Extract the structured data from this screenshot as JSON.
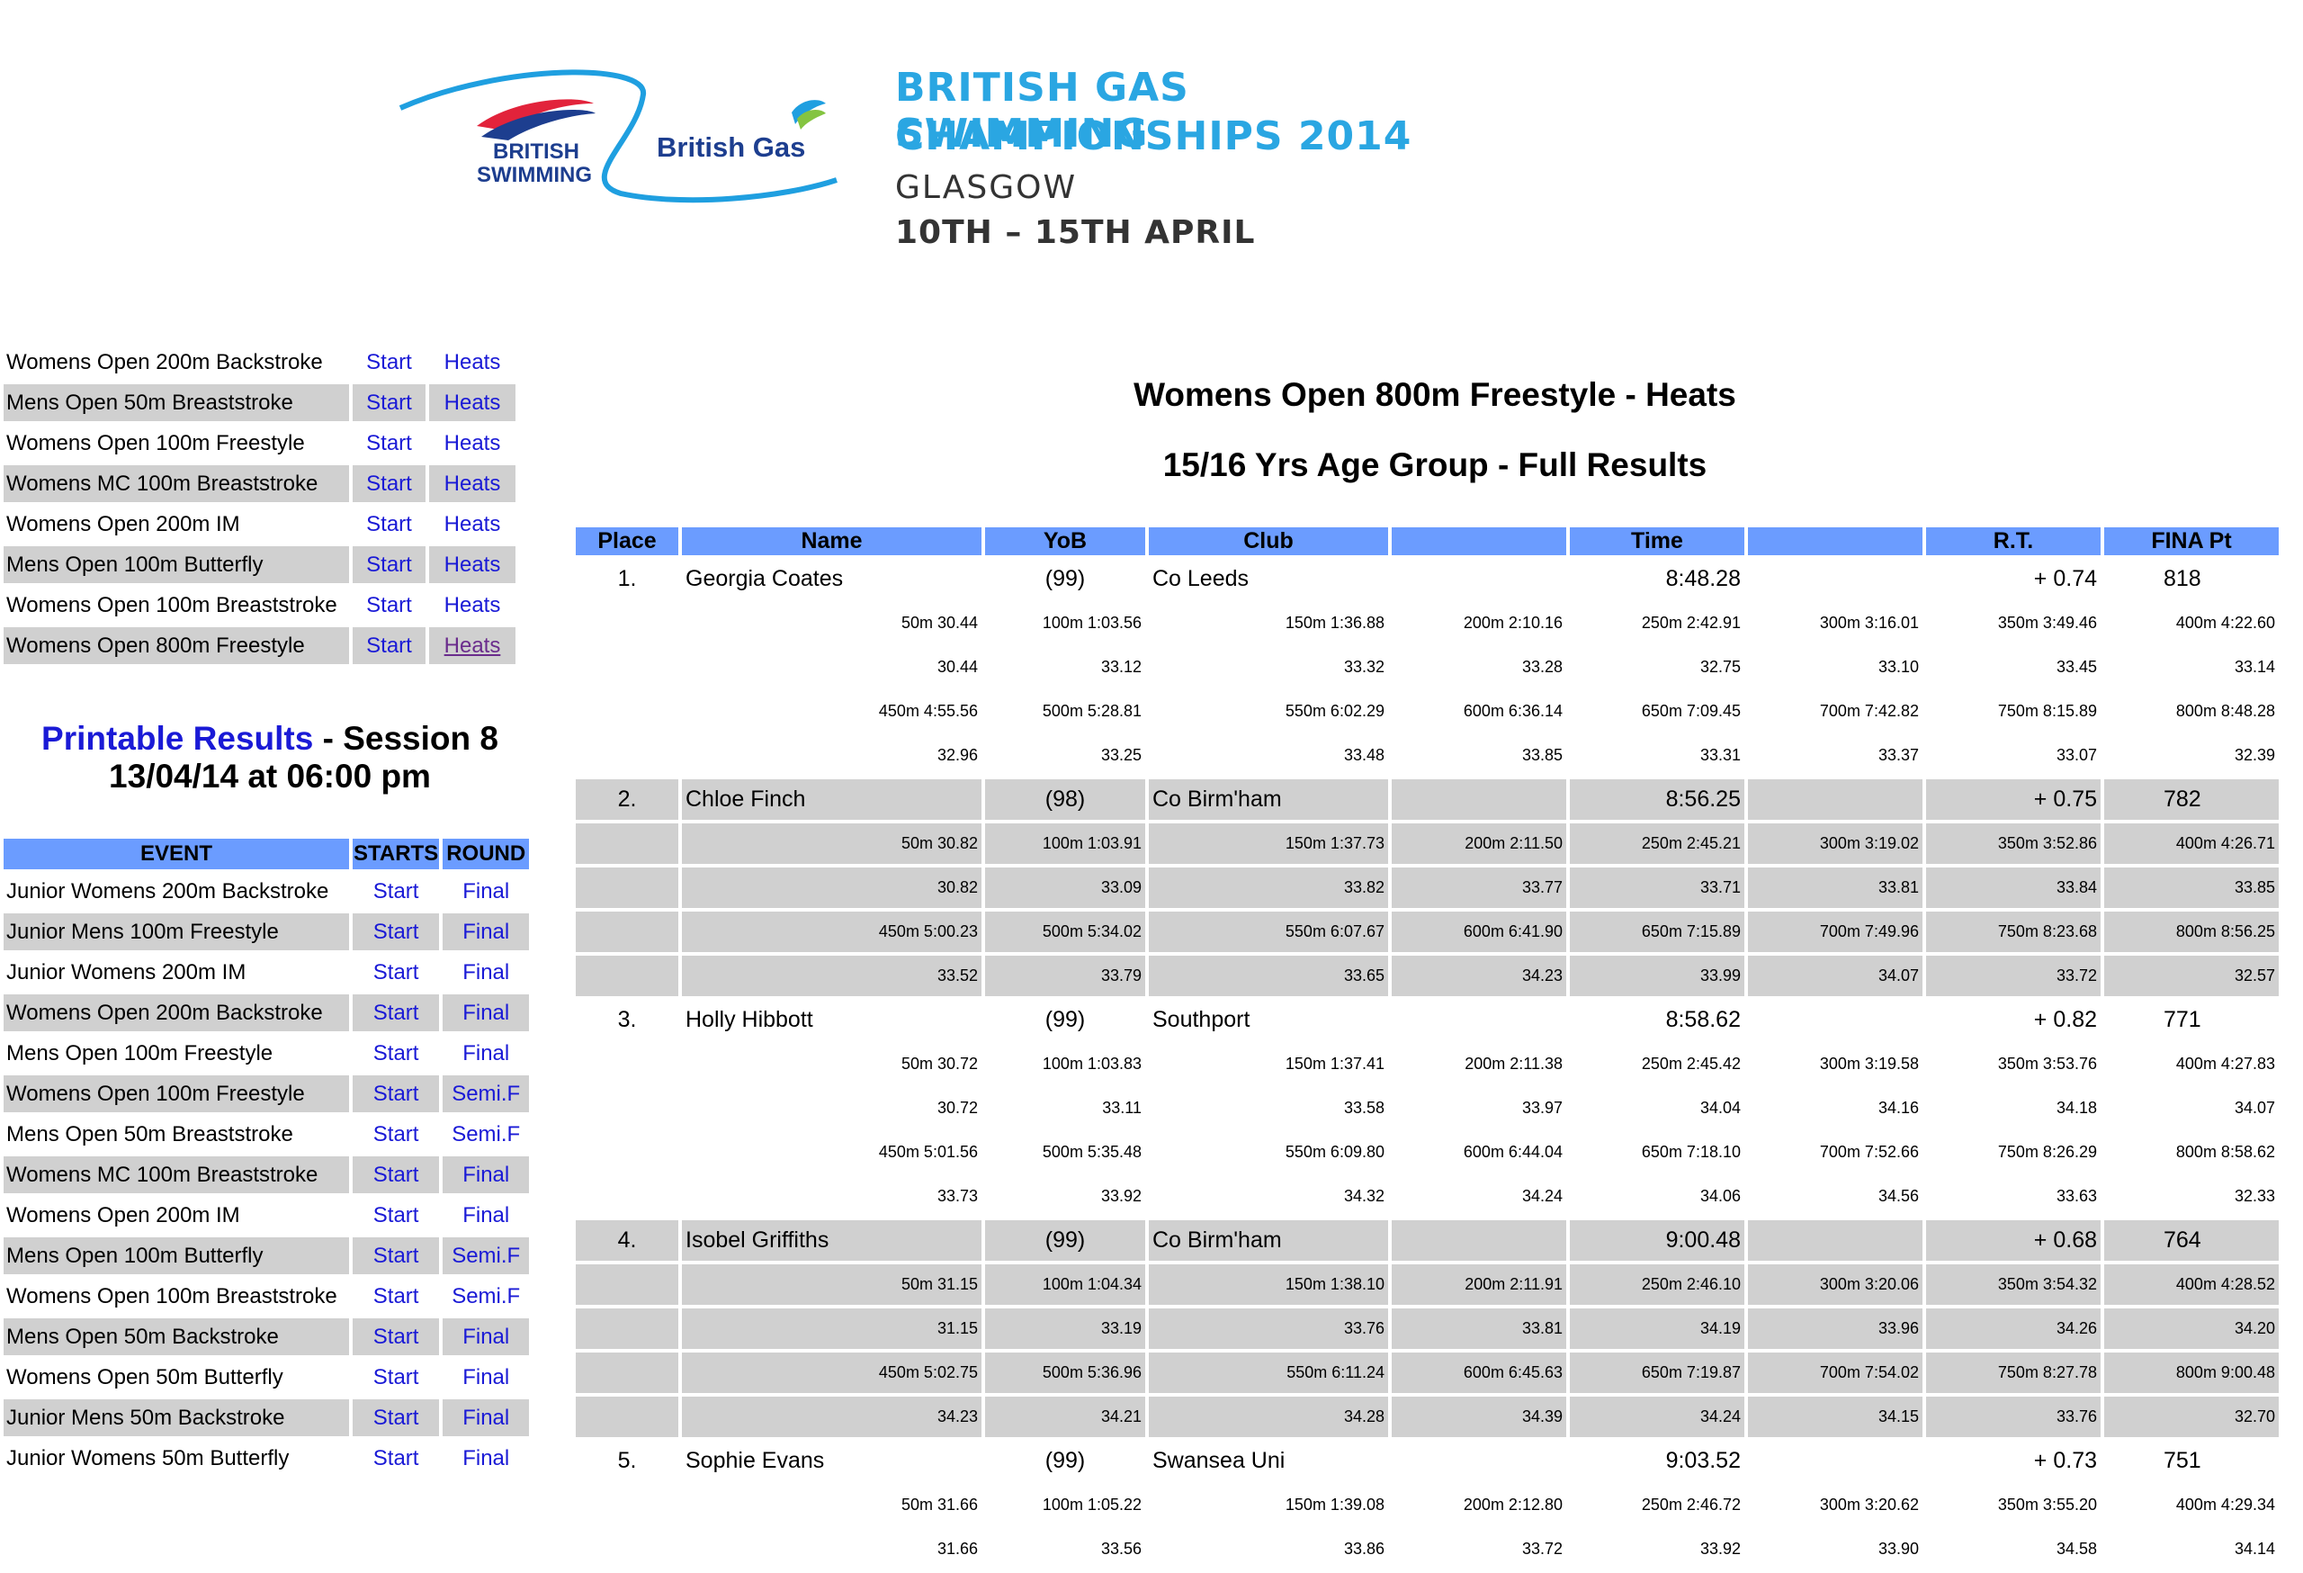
{
  "header": {
    "logo_british": "BRITISH",
    "logo_swimming": "SWIMMING",
    "logo_sponsor": "British Gas",
    "title_line1": "BRITISH GAS SWIMMING",
    "title_line2": "CHAMPIONSHIPS 2014",
    "city": "GLASGOW",
    "dates": "10TH – 15TH APRIL"
  },
  "top_links": [
    {
      "event": "Womens Open 200m Backstroke",
      "start": "Start",
      "round": "Heats"
    },
    {
      "event": "Mens Open 50m Breaststroke",
      "start": "Start",
      "round": "Heats"
    },
    {
      "event": "Womens Open 100m Freestyle",
      "start": "Start",
      "round": "Heats"
    },
    {
      "event": "Womens MC 100m Breaststroke",
      "start": "Start",
      "round": "Heats"
    },
    {
      "event": "Womens Open 200m IM",
      "start": "Start",
      "round": "Heats"
    },
    {
      "event": "Mens Open 100m Butterfly",
      "start": "Start",
      "round": "Heats"
    },
    {
      "event": "Womens Open 100m Breaststroke",
      "start": "Start",
      "round": "Heats"
    },
    {
      "event": "Womens Open 800m Freestyle",
      "start": "Start",
      "round": "Heats"
    }
  ],
  "printable": {
    "link": "Printable Results",
    "session": " - Session 8",
    "datetime": "13/04/14 at 06:00 pm"
  },
  "session_table": {
    "headers": {
      "event": "EVENT",
      "starts": "STARTS",
      "round": "ROUND"
    },
    "rows": [
      {
        "event": "Junior Womens 200m Backstroke",
        "start": "Start",
        "round": "Final"
      },
      {
        "event": "Junior Mens 100m Freestyle",
        "start": "Start",
        "round": "Final"
      },
      {
        "event": "Junior Womens 200m IM",
        "start": "Start",
        "round": "Final"
      },
      {
        "event": "Womens Open 200m Backstroke",
        "start": "Start",
        "round": "Final"
      },
      {
        "event": "Mens Open 100m Freestyle",
        "start": "Start",
        "round": "Final"
      },
      {
        "event": "Womens Open 100m Freestyle",
        "start": "Start",
        "round": "Semi.F"
      },
      {
        "event": "Mens Open 50m Breaststroke",
        "start": "Start",
        "round": "Semi.F"
      },
      {
        "event": "Womens MC 100m Breaststroke",
        "start": "Start",
        "round": "Final"
      },
      {
        "event": "Womens Open 200m IM",
        "start": "Start",
        "round": "Final"
      },
      {
        "event": "Mens Open 100m Butterfly",
        "start": "Start",
        "round": "Semi.F"
      },
      {
        "event": "Womens Open 100m Breaststroke",
        "start": "Start",
        "round": "Semi.F"
      },
      {
        "event": "Mens Open 50m Backstroke",
        "start": "Start",
        "round": "Final"
      },
      {
        "event": "Womens Open 50m Butterfly",
        "start": "Start",
        "round": "Final"
      },
      {
        "event": "Junior Mens 50m Backstroke",
        "start": "Start",
        "round": "Final"
      },
      {
        "event": "Junior Womens 50m Butterfly",
        "start": "Start",
        "round": "Final"
      }
    ]
  },
  "results": {
    "title": "Womens Open 800m Freestyle - Heats",
    "subtitle": "15/16 Yrs Age Group - Full Results",
    "columns": {
      "place": "Place",
      "name": "Name",
      "yob": "YoB",
      "club": "Club",
      "time": "Time",
      "rt": "R.T.",
      "fina": "FINA Pt"
    },
    "swimmers": [
      {
        "place": "1.",
        "name": "Georgia Coates",
        "yob": "(99)",
        "club": "Co Leeds",
        "time": "8:48.28",
        "rt": "+ 0.74",
        "fina": "818",
        "splits": [
          [
            "50m 30.44",
            "100m 1:03.56",
            "150m 1:36.88",
            "200m 2:10.16",
            "250m 2:42.91",
            "300m 3:16.01",
            "350m 3:49.46",
            "400m 4:22.60"
          ],
          [
            "30.44",
            "33.12",
            "33.32",
            "33.28",
            "32.75",
            "33.10",
            "33.45",
            "33.14"
          ],
          [
            "450m 4:55.56",
            "500m 5:28.81",
            "550m 6:02.29",
            "600m 6:36.14",
            "650m 7:09.45",
            "700m 7:42.82",
            "750m 8:15.89",
            "800m 8:48.28"
          ],
          [
            "32.96",
            "33.25",
            "33.48",
            "33.85",
            "33.31",
            "33.37",
            "33.07",
            "32.39"
          ]
        ]
      },
      {
        "place": "2.",
        "name": "Chloe Finch",
        "yob": "(98)",
        "club": "Co Birm'ham",
        "time": "8:56.25",
        "rt": "+ 0.75",
        "fina": "782",
        "splits": [
          [
            "50m 30.82",
            "100m 1:03.91",
            "150m 1:37.73",
            "200m 2:11.50",
            "250m 2:45.21",
            "300m 3:19.02",
            "350m 3:52.86",
            "400m 4:26.71"
          ],
          [
            "30.82",
            "33.09",
            "33.82",
            "33.77",
            "33.71",
            "33.81",
            "33.84",
            "33.85"
          ],
          [
            "450m 5:00.23",
            "500m 5:34.02",
            "550m 6:07.67",
            "600m 6:41.90",
            "650m 7:15.89",
            "700m 7:49.96",
            "750m 8:23.68",
            "800m 8:56.25"
          ],
          [
            "33.52",
            "33.79",
            "33.65",
            "34.23",
            "33.99",
            "34.07",
            "33.72",
            "32.57"
          ]
        ]
      },
      {
        "place": "3.",
        "name": "Holly Hibbott",
        "yob": "(99)",
        "club": "Southport",
        "time": "8:58.62",
        "rt": "+ 0.82",
        "fina": "771",
        "splits": [
          [
            "50m 30.72",
            "100m 1:03.83",
            "150m 1:37.41",
            "200m 2:11.38",
            "250m 2:45.42",
            "300m 3:19.58",
            "350m 3:53.76",
            "400m 4:27.83"
          ],
          [
            "30.72",
            "33.11",
            "33.58",
            "33.97",
            "34.04",
            "34.16",
            "34.18",
            "34.07"
          ],
          [
            "450m 5:01.56",
            "500m 5:35.48",
            "550m 6:09.80",
            "600m 6:44.04",
            "650m 7:18.10",
            "700m 7:52.66",
            "750m 8:26.29",
            "800m 8:58.62"
          ],
          [
            "33.73",
            "33.92",
            "34.32",
            "34.24",
            "34.06",
            "34.56",
            "33.63",
            "32.33"
          ]
        ]
      },
      {
        "place": "4.",
        "name": "Isobel Griffiths",
        "yob": "(99)",
        "club": "Co Birm'ham",
        "time": "9:00.48",
        "rt": "+ 0.68",
        "fina": "764",
        "splits": [
          [
            "50m 31.15",
            "100m 1:04.34",
            "150m 1:38.10",
            "200m 2:11.91",
            "250m 2:46.10",
            "300m 3:20.06",
            "350m 3:54.32",
            "400m 4:28.52"
          ],
          [
            "31.15",
            "33.19",
            "33.76",
            "33.81",
            "34.19",
            "33.96",
            "34.26",
            "34.20"
          ],
          [
            "450m 5:02.75",
            "500m 5:36.96",
            "550m 6:11.24",
            "600m 6:45.63",
            "650m 7:19.87",
            "700m 7:54.02",
            "750m 8:27.78",
            "800m 9:00.48"
          ],
          [
            "34.23",
            "34.21",
            "34.28",
            "34.39",
            "34.24",
            "34.15",
            "33.76",
            "32.70"
          ]
        ]
      },
      {
        "place": "5.",
        "name": "Sophie Evans",
        "yob": "(99)",
        "club": "Swansea Uni",
        "time": "9:03.52",
        "rt": "+ 0.73",
        "fina": "751",
        "splits": [
          [
            "50m 31.66",
            "100m 1:05.22",
            "150m 1:39.08",
            "200m 2:12.80",
            "250m 2:46.72",
            "300m 3:20.62",
            "350m 3:55.20",
            "400m 4:29.34"
          ],
          [
            "31.66",
            "33.56",
            "33.86",
            "33.72",
            "33.92",
            "33.90",
            "34.58",
            "34.14"
          ]
        ]
      }
    ]
  },
  "colors": {
    "header_blue": "#6b9cff",
    "row_grey": "#d0d0d0",
    "link_blue": "#1a1ad6",
    "title_blue": "#2aa6e2"
  }
}
